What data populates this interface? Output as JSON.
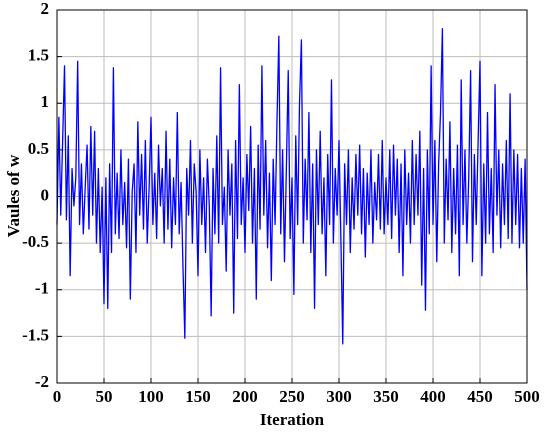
{
  "chart_data": {
    "type": "line",
    "xlabel": "Iteration",
    "ylabel": "Vaules of w",
    "color": "#0000ff",
    "grid": true,
    "xlim": [
      0,
      500
    ],
    "ylim": [
      -2,
      2
    ],
    "xticks": [
      0,
      50,
      100,
      150,
      200,
      250,
      300,
      350,
      400,
      450,
      500
    ],
    "yticks": [
      -2,
      -1.5,
      -1,
      -0.5,
      0,
      0.5,
      1,
      1.5,
      2
    ],
    "x": [
      0,
      2,
      4,
      6,
      8,
      10,
      12,
      14,
      16,
      18,
      20,
      22,
      24,
      26,
      28,
      30,
      32,
      34,
      36,
      38,
      40,
      42,
      44,
      46,
      48,
      50,
      52,
      54,
      56,
      58,
      60,
      62,
      64,
      66,
      68,
      70,
      72,
      74,
      76,
      78,
      80,
      82,
      84,
      86,
      88,
      90,
      92,
      94,
      96,
      98,
      100,
      102,
      104,
      106,
      108,
      110,
      112,
      114,
      116,
      118,
      120,
      122,
      124,
      126,
      128,
      130,
      132,
      134,
      136,
      138,
      140,
      142,
      144,
      146,
      148,
      150,
      152,
      154,
      156,
      158,
      160,
      162,
      164,
      166,
      168,
      170,
      172,
      174,
      176,
      178,
      180,
      182,
      184,
      186,
      188,
      190,
      192,
      194,
      196,
      198,
      200,
      202,
      204,
      206,
      208,
      210,
      212,
      214,
      216,
      218,
      220,
      222,
      224,
      226,
      228,
      230,
      232,
      234,
      236,
      238,
      240,
      242,
      244,
      246,
      248,
      250,
      252,
      254,
      256,
      258,
      260,
      262,
      264,
      266,
      268,
      270,
      272,
      274,
      276,
      278,
      280,
      282,
      284,
      286,
      288,
      290,
      292,
      294,
      296,
      298,
      300,
      302,
      304,
      306,
      308,
      310,
      312,
      314,
      316,
      318,
      320,
      322,
      324,
      326,
      328,
      330,
      332,
      334,
      336,
      338,
      340,
      342,
      344,
      346,
      348,
      350,
      352,
      354,
      356,
      358,
      360,
      362,
      364,
      366,
      368,
      370,
      372,
      374,
      376,
      378,
      380,
      382,
      384,
      386,
      388,
      390,
      392,
      394,
      396,
      398,
      400,
      402,
      404,
      406,
      408,
      410,
      412,
      414,
      416,
      418,
      420,
      422,
      424,
      426,
      428,
      430,
      432,
      434,
      436,
      438,
      440,
      442,
      444,
      446,
      448,
      450,
      452,
      454,
      456,
      458,
      460,
      462,
      464,
      466,
      468,
      470,
      472,
      474,
      476,
      478,
      480,
      482,
      484,
      486,
      488,
      490,
      492,
      494,
      496,
      498,
      500
    ],
    "values": [
      -0.3,
      0.85,
      -0.2,
      0.6,
      1.4,
      -0.25,
      0.65,
      -0.85,
      0.3,
      -0.1,
      0.2,
      1.45,
      -0.3,
      0.35,
      -0.4,
      0.1,
      0.55,
      -0.35,
      0.75,
      -0.2,
      0.7,
      -0.5,
      0.3,
      -0.6,
      0.1,
      -1.15,
      0.2,
      -1.2,
      0.35,
      -0.6,
      1.38,
      -0.4,
      0.25,
      -0.45,
      0.5,
      -0.3,
      0.15,
      -0.55,
      0.4,
      -1.1,
      0.05,
      0.35,
      -0.6,
      0.8,
      -0.2,
      0.45,
      -0.35,
      0.6,
      -0.5,
      0.1,
      0.85,
      -0.3,
      0.25,
      -0.45,
      0.55,
      -0.1,
      0.3,
      -0.5,
      0.7,
      -0.35,
      0.4,
      -0.55,
      0.2,
      -0.3,
      0.9,
      -0.4,
      0.15,
      -0.75,
      -1.52,
      0.3,
      -0.2,
      0.6,
      -0.5,
      0.35,
      0.05,
      -0.85,
      0.5,
      -0.3,
      0.2,
      -0.6,
      0.4,
      -0.1,
      -1.28,
      0.3,
      -0.4,
      0.65,
      -0.5,
      1.38,
      -0.3,
      0.1,
      -0.8,
      0.5,
      -0.2,
      0.35,
      -1.25,
      0.6,
      -0.45,
      1.2,
      -0.3,
      0.2,
      -0.6,
      0.45,
      -0.15,
      0.75,
      -0.5,
      0.3,
      -1.1,
      0.55,
      -0.35,
      1.4,
      -0.2,
      0.6,
      -0.55,
      0.25,
      -0.9,
      0.4,
      -0.3,
      0.8,
      1.72,
      -0.4,
      0.5,
      -0.7,
      0.3,
      1.35,
      -0.45,
      0.2,
      -1.05,
      0.65,
      -0.3,
      1.0,
      1.68,
      -0.5,
      0.4,
      -0.25,
      0.9,
      -0.6,
      0.35,
      -1.2,
      0.5,
      -0.3,
      0.7,
      -0.4,
      0.2,
      -0.85,
      0.45,
      -0.3,
      1.25,
      -0.5,
      0.3,
      -0.2,
      0.6,
      -0.45,
      -1.58,
      0.35,
      -0.3,
      0.5,
      -0.6,
      0.2,
      -0.35,
      0.45,
      -0.2,
      0.55,
      -0.4,
      0.3,
      -0.65,
      0.25,
      -0.3,
      0.5,
      -0.5,
      0.15,
      -0.25,
      0.45,
      -0.35,
      0.6,
      -0.4,
      0.2,
      -0.3,
      0.5,
      -0.45,
      0.55,
      -0.2,
      0.4,
      -0.6,
      0.35,
      -0.85,
      0.5,
      -0.3,
      0.25,
      -0.5,
      0.6,
      -0.3,
      0.45,
      -0.2,
      0.7,
      -0.95,
      0.3,
      -1.22,
      0.5,
      -0.4,
      1.4,
      -0.3,
      0.6,
      -0.7,
      0.35,
      0.9,
      1.8,
      -0.5,
      0.4,
      -0.25,
      0.8,
      -0.6,
      0.3,
      -0.4,
      0.55,
      -0.85,
      1.25,
      -0.3,
      0.5,
      -0.5,
      0.2,
      1.35,
      -0.7,
      0.45,
      -0.3,
      0.6,
      1.45,
      -0.85,
      0.35,
      -0.5,
      0.9,
      -0.4,
      0.3,
      -0.6,
      1.2,
      -0.2,
      0.5,
      -0.55,
      0.35,
      -0.3,
      0.6,
      -0.45,
      1.1,
      -0.5,
      0.5,
      -0.3,
      0.45,
      -0.55,
      0.3,
      -0.5,
      0.4,
      -1.0
    ]
  }
}
